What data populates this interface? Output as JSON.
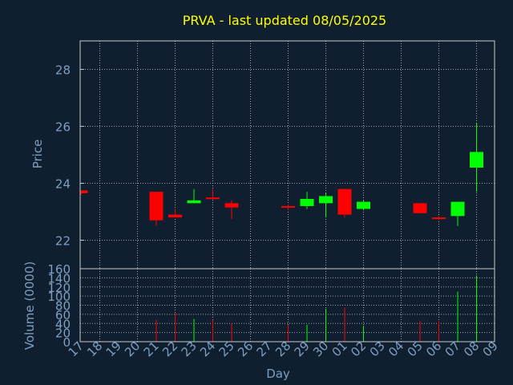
{
  "chart_data": {
    "type": "candlestick",
    "title": "PRVA - last updated 08/05/2025",
    "xlabel": "Day",
    "ylabel": "Price",
    "volume_label": "Volume (0000)",
    "grid": true,
    "colors": {
      "background": "#0f1f30",
      "title": "#ffff00",
      "axis_text": "#7f9fc0",
      "frame": "#c8c8c8",
      "grid": "#c8c8c8",
      "up": "#00ff00",
      "down": "#ff0000"
    },
    "x_ticks": [
      "17",
      "18",
      "19",
      "20",
      "21",
      "22",
      "23",
      "24",
      "25",
      "26",
      "27",
      "28",
      "29",
      "30",
      "01",
      "02",
      "03",
      "04",
      "05",
      "06",
      "07",
      "08",
      "09"
    ],
    "price_axis": {
      "ylim": [
        21,
        29
      ],
      "ticks": [
        22,
        24,
        26,
        28
      ]
    },
    "volume_axis": {
      "ylim": [
        0,
        160
      ],
      "ticks": [
        0,
        20,
        40,
        60,
        80,
        100,
        120,
        140,
        160
      ]
    },
    "candles": [
      {
        "day": "17",
        "open": 23.75,
        "close": 23.65,
        "high": 23.75,
        "low": 23.6,
        "volume": 0
      },
      {
        "day": "21",
        "open": 23.7,
        "close": 22.7,
        "high": 23.7,
        "low": 22.5,
        "volume": 48
      },
      {
        "day": "22",
        "open": 22.9,
        "close": 22.8,
        "high": 23.1,
        "low": 22.8,
        "volume": 62
      },
      {
        "day": "23",
        "open": 23.3,
        "close": 23.4,
        "high": 23.8,
        "low": 23.3,
        "volume": 50
      },
      {
        "day": "24",
        "open": 23.5,
        "close": 23.45,
        "high": 23.8,
        "low": 23.45,
        "volume": 48
      },
      {
        "day": "25",
        "open": 23.3,
        "close": 23.15,
        "high": 23.4,
        "low": 22.75,
        "volume": 40
      },
      {
        "day": "28",
        "open": 23.2,
        "close": 23.15,
        "high": 23.25,
        "low": 23.05,
        "volume": 37
      },
      {
        "day": "29",
        "open": 23.2,
        "close": 23.45,
        "high": 23.7,
        "low": 23.1,
        "volume": 37
      },
      {
        "day": "30",
        "open": 23.3,
        "close": 23.55,
        "high": 23.65,
        "low": 22.8,
        "volume": 72
      },
      {
        "day": "01",
        "open": 23.8,
        "close": 22.9,
        "high": 23.8,
        "low": 22.8,
        "volume": 75
      },
      {
        "day": "02",
        "open": 23.1,
        "close": 23.35,
        "high": 23.4,
        "low": 23.05,
        "volume": 35
      },
      {
        "day": "05",
        "open": 23.3,
        "close": 22.95,
        "high": 23.3,
        "low": 22.95,
        "volume": 45
      },
      {
        "day": "06",
        "open": 22.8,
        "close": 22.75,
        "high": 22.85,
        "low": 22.7,
        "volume": 45
      },
      {
        "day": "07",
        "open": 22.85,
        "close": 23.35,
        "high": 23.35,
        "low": 22.5,
        "volume": 110
      },
      {
        "day": "08",
        "open": 24.55,
        "close": 25.1,
        "high": 26.1,
        "low": 23.7,
        "volume": 145
      }
    ]
  }
}
